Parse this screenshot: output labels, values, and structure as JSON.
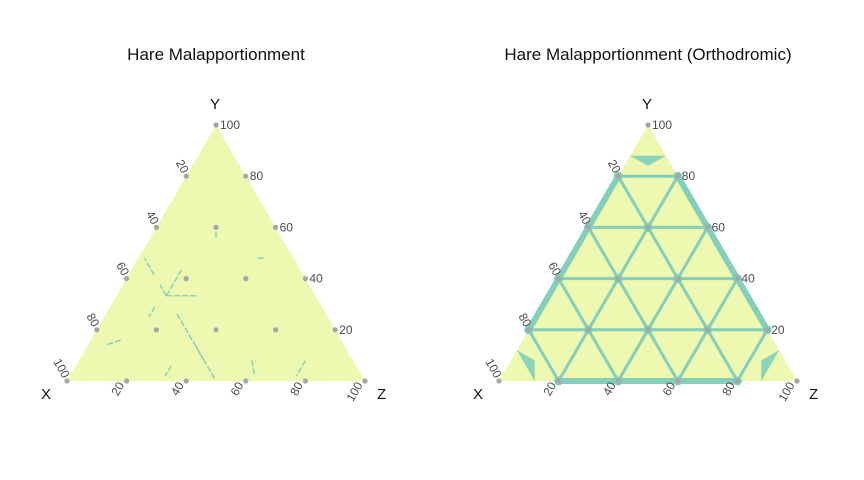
{
  "colors": {
    "background_fill": "#edf8b1",
    "region_fill": "#7fcdbb",
    "grid_point": "#a6a6a6",
    "tick_text": "#4d4d4d",
    "title_text": "#111111"
  },
  "chart_data": [
    {
      "type": "ternary",
      "title": "Hare Malapportionment",
      "vertices": {
        "left": "X",
        "top": "Y",
        "right": "Z"
      },
      "tick_values": [
        20,
        40,
        60,
        80,
        100
      ],
      "y_ticks": [
        "100",
        "80",
        "60",
        "40",
        "20"
      ],
      "x_ticks": [
        "100",
        "80",
        "60",
        "40",
        "20"
      ],
      "z_ticks": [
        "20",
        "40",
        "60",
        "80",
        "100"
      ],
      "grid_points_step": 20,
      "highlight_style": "thin",
      "boundary_segments": [
        [
          [
            50,
            41.5,
            8.5
          ],
          [
            50,
            48,
            2
          ]
        ],
        [
          [
            50,
            8,
            42
          ],
          [
            50,
            27,
            23
          ]
        ],
        [
          [
            50,
            33.3,
            16.7
          ],
          [
            50,
            37.5,
            12.5
          ]
        ],
        [
          [
            40,
            33.3,
            26.7
          ],
          [
            50,
            33.3,
            16.7
          ]
        ],
        [
          [
            50,
            33.3,
            16.7
          ],
          [
            40,
            43.3,
            16.7
          ]
        ],
        [
          [
            50,
            1,
            49
          ],
          [
            50,
            14,
            36
          ]
        ],
        [
          [
            56,
            29,
            15
          ],
          [
            60,
            25,
            15
          ]
        ],
        [
          [
            22,
            56,
            22
          ],
          [
            20,
            60,
            20
          ]
        ],
        [
          [
            12,
            48,
            40
          ],
          [
            10,
            48,
            42
          ]
        ],
        [
          [
            74,
            16,
            10
          ],
          [
            80,
            14,
            6
          ]
        ],
        [
          [
            16,
            8,
            76
          ],
          [
            22,
            2,
            76
          ]
        ],
        [
          [
            34,
            8,
            58
          ],
          [
            36,
            2,
            62
          ]
        ],
        [
          [
            62,
            6,
            32
          ],
          [
            66,
            2,
            32
          ]
        ]
      ]
    },
    {
      "type": "ternary",
      "title": "Hare Malapportionment (Orthodromic)",
      "vertices": {
        "left": "X",
        "top": "Y",
        "right": "Z"
      },
      "tick_values": [
        20,
        40,
        60,
        80,
        100
      ],
      "y_ticks": [
        "100",
        "80",
        "60",
        "40",
        "20"
      ],
      "x_ticks": [
        "100",
        "80",
        "60",
        "40",
        "20"
      ],
      "z_ticks": [
        "20",
        "40",
        "60",
        "80",
        "100"
      ],
      "grid_points_step": 20,
      "highlight_style": "cells",
      "region_vertices_y": [
        90,
        70,
        50,
        30,
        10
      ],
      "region_vertices_x": [
        90,
        70,
        50,
        30,
        10
      ],
      "region_vertices_z": [
        90,
        70,
        50,
        30,
        10
      ],
      "triple_points": [
        [
          40,
          40,
          20
        ],
        [
          40,
          20,
          40
        ],
        [
          20,
          40,
          40
        ],
        [
          60,
          20,
          20
        ],
        [
          20,
          60,
          20
        ],
        [
          20,
          20,
          60
        ],
        [
          80,
          0,
          20
        ],
        [
          80,
          20,
          0
        ],
        [
          0,
          80,
          20
        ],
        [
          20,
          80,
          0
        ],
        [
          0,
          20,
          80
        ],
        [
          20,
          0,
          80
        ],
        [
          60,
          0,
          40
        ],
        [
          40,
          0,
          60
        ],
        [
          0,
          60,
          40
        ],
        [
          0,
          40,
          60
        ],
        [
          60,
          40,
          0
        ],
        [
          40,
          60,
          0
        ]
      ]
    }
  ]
}
